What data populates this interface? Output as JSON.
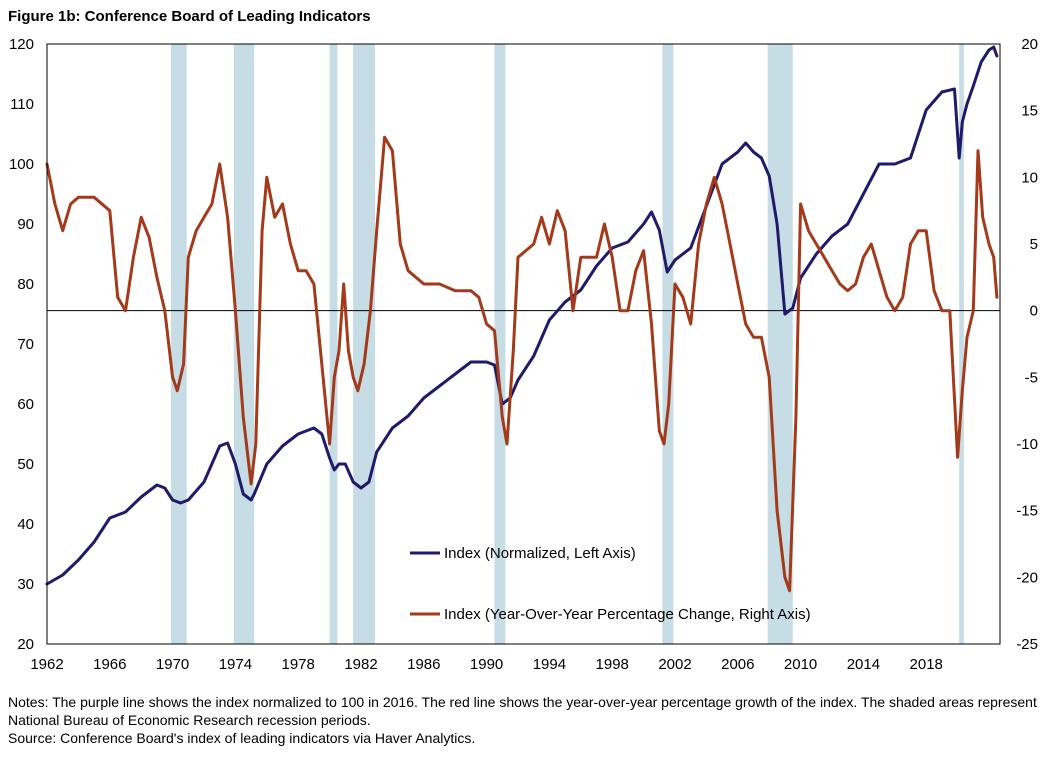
{
  "figure": {
    "title": "Figure 1b: Conference Board of Leading Indicators",
    "notes": "Notes: The purple line shows the index normalized to 100  in 2016.  The red line shows the year-over-year percentage growth of the index. The shaded areas represent National Bureau of Economic Research recession periods.",
    "source": "Source: Conference Board's index of leading indicators via Haver Analytics."
  },
  "colors": {
    "index_line": "#1f1a6b",
    "yoy_line": "#a33a1a",
    "recession_band": "#c6dde6"
  },
  "chart_data": {
    "type": "line",
    "title": "Figure 1b: Conference Board of Leading Indicators",
    "x_ticks": [
      "1962",
      "1966",
      "1970",
      "1974",
      "1978",
      "1982",
      "1986",
      "1990",
      "1994",
      "1998",
      "2002",
      "2006",
      "2010",
      "2014",
      "2018"
    ],
    "xlim": [
      1962,
      2022.7
    ],
    "y_left": {
      "ticks": [
        20,
        30,
        40,
        50,
        60,
        70,
        80,
        90,
        100,
        110,
        120
      ],
      "lim": [
        20,
        120
      ]
    },
    "y_right": {
      "ticks": [
        -25,
        -20,
        -15,
        -10,
        -5,
        0,
        5,
        10,
        15,
        20
      ],
      "lim": [
        -25,
        20
      ],
      "zero_line": true
    },
    "recessions": [
      [
        1969.9,
        1970.9
      ],
      [
        1973.9,
        1975.2
      ],
      [
        1980.0,
        1980.5
      ],
      [
        1981.5,
        1982.9
      ],
      [
        1990.5,
        1991.2
      ],
      [
        2001.2,
        2001.9
      ],
      [
        2007.9,
        2009.5
      ],
      [
        2020.1,
        2020.4
      ]
    ],
    "legend": [
      {
        "label": "Index (Normalized, Left Axis)",
        "series": "index"
      },
      {
        "label": "Index (Year-Over-Year Percentage Change, Right Axis)",
        "series": "yoy"
      }
    ],
    "series": [
      {
        "name": "Index (Normalized, Left Axis)",
        "axis": "left",
        "x": [
          1962,
          1963,
          1964,
          1965,
          1966,
          1967,
          1968,
          1969,
          1969.5,
          1970,
          1970.5,
          1971,
          1972,
          1973,
          1973.5,
          1974,
          1974.5,
          1975,
          1975.2,
          1976,
          1977,
          1978,
          1979,
          1979.5,
          1980,
          1980.3,
          1980.6,
          1981,
          1981.5,
          1982,
          1982.5,
          1983,
          1984,
          1985,
          1986,
          1987,
          1988,
          1989,
          1990,
          1990.5,
          1991,
          1991.5,
          1992,
          1993,
          1994,
          1995,
          1996,
          1997,
          1998,
          1999,
          2000,
          2000.5,
          2001,
          2001.5,
          2002,
          2003,
          2004,
          2005,
          2006,
          2006.5,
          2007,
          2007.5,
          2008,
          2008.5,
          2009,
          2009.5,
          2010,
          2011,
          2012,
          2013,
          2014,
          2015,
          2016,
          2017,
          2018,
          2019,
          2019.8,
          2020.1,
          2020.3,
          2020.6,
          2021,
          2021.5,
          2022,
          2022.3,
          2022.5
        ],
        "values": [
          30,
          31.5,
          34,
          37,
          41,
          42,
          44.5,
          46.5,
          46,
          44,
          43.5,
          44,
          47,
          53,
          53.5,
          50,
          45,
          44,
          45,
          50,
          53,
          55,
          56,
          55,
          51,
          49,
          50,
          50,
          47,
          46,
          47,
          52,
          56,
          58,
          61,
          63,
          65,
          67,
          67,
          66.5,
          60,
          61,
          64,
          68,
          74,
          77,
          79,
          83,
          86,
          87,
          90,
          92,
          89,
          82,
          84,
          86,
          93,
          100,
          102,
          103.5,
          102,
          101,
          98,
          90,
          75,
          76,
          81,
          85,
          88,
          90,
          95,
          100,
          100,
          101,
          109,
          112,
          112.5,
          101,
          107,
          110,
          113,
          117,
          119,
          119.5,
          118
        ]
      },
      {
        "name": "Index (Year-Over-Year Percentage Change, Right Axis)",
        "axis": "right",
        "x": [
          1962,
          1962.5,
          1963,
          1963.5,
          1964,
          1965,
          1966,
          1966.5,
          1967,
          1967.5,
          1968,
          1968.5,
          1969,
          1969.5,
          1970,
          1970.3,
          1970.7,
          1971,
          1971.5,
          1972,
          1972.5,
          1973,
          1973.5,
          1974,
          1974.5,
          1975,
          1975.3,
          1975.7,
          1976,
          1976.5,
          1977,
          1977.5,
          1978,
          1978.5,
          1979,
          1979.5,
          1980,
          1980.3,
          1980.6,
          1980.9,
          1981.2,
          1981.5,
          1981.8,
          1982.2,
          1982.6,
          1983,
          1983.5,
          1984,
          1984.5,
          1985,
          1986,
          1987,
          1988,
          1989,
          1989.5,
          1990,
          1990.5,
          1991,
          1991.3,
          1991.7,
          1992,
          1993,
          1993.5,
          1994,
          1994.5,
          1995,
          1995.5,
          1996,
          1997,
          1997.5,
          1998,
          1998.5,
          1999,
          1999.5,
          2000,
          2000.5,
          2001,
          2001.3,
          2001.6,
          2002,
          2002.5,
          2003,
          2003.5,
          2004,
          2004.5,
          2005,
          2005.5,
          2006,
          2006.5,
          2007,
          2007.5,
          2008,
          2008.5,
          2009,
          2009.3,
          2009.7,
          2010,
          2010.5,
          2011,
          2011.5,
          2012,
          2012.5,
          2013,
          2013.5,
          2014,
          2014.5,
          2015,
          2015.5,
          2016,
          2016.5,
          2017,
          2017.5,
          2018,
          2018.5,
          2019,
          2019.5,
          2020,
          2020.3,
          2020.6,
          2021,
          2021.3,
          2021.6,
          2022,
          2022.3,
          2022.5
        ],
        "values": [
          11,
          8,
          6,
          8,
          8.5,
          8.5,
          7.5,
          1,
          0,
          4,
          7,
          5.5,
          2.5,
          0,
          -5,
          -6,
          -4,
          4,
          6,
          7,
          8,
          11,
          7,
          0,
          -8,
          -13,
          -10,
          6,
          10,
          7,
          8,
          5,
          3,
          3,
          2,
          -4,
          -10,
          -5,
          -3,
          2,
          -3,
          -5,
          -6,
          -4,
          0,
          6,
          13,
          12,
          5,
          3,
          2,
          2,
          1.5,
          1.5,
          1,
          -1,
          -1.5,
          -8,
          -10,
          -3,
          4,
          5,
          7,
          5,
          7.5,
          6,
          0,
          4,
          4,
          6.5,
          4,
          0,
          0,
          3,
          4.5,
          -1,
          -9,
          -10,
          -7,
          2,
          1,
          -1,
          5,
          8,
          10,
          8,
          5,
          2,
          -1,
          -2,
          -2,
          -5,
          -15,
          -20,
          -21,
          -8,
          8,
          6,
          5,
          4,
          3,
          2,
          1.5,
          2,
          4,
          5,
          3,
          1,
          0,
          1,
          5,
          6,
          6,
          1.5,
          0,
          0,
          -11,
          -6,
          -2,
          0,
          12,
          7,
          5,
          4,
          1
        ]
      }
    ]
  }
}
